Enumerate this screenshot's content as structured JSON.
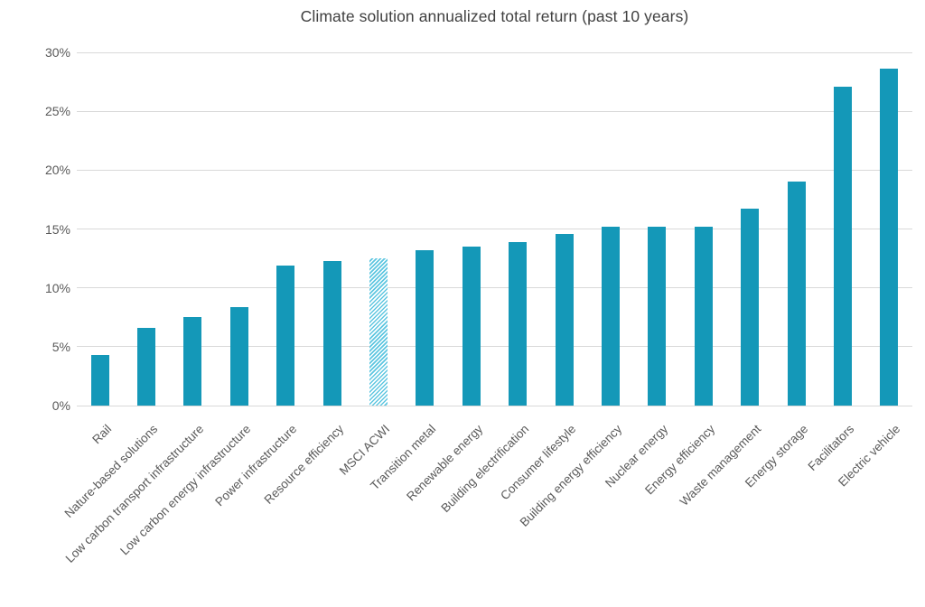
{
  "chart_data": {
    "type": "bar",
    "title": "Climate solution annualized total return (past 10 years)",
    "categories": [
      "Rail",
      "Nature-based solutions",
      "Low carbon transport infrastructure",
      "Low carbon energy infrastructure",
      "Power infrastructure",
      "Resource efficiency",
      "MSCI ACWI",
      "Transition metal",
      "Renewable energy",
      "Building electrification",
      "Consumer lifestyle",
      "Building energy efficiency",
      "Nuclear energy",
      "Energy efficiency",
      "Waste management",
      "Energy storage",
      "Facilitators",
      "Electric vehicle"
    ],
    "values": [
      4.3,
      6.6,
      7.5,
      8.4,
      11.9,
      12.3,
      12.5,
      13.2,
      13.5,
      13.9,
      14.6,
      15.2,
      15.2,
      15.2,
      16.7,
      19.0,
      27.1,
      28.6
    ],
    "value_unit": "%",
    "benchmark_category": "MSCI ACWI",
    "benchmark_index": 6,
    "benchmark_style": "hatched",
    "xlabel": "",
    "ylabel": "",
    "ylim": [
      0,
      30
    ],
    "ytick_labels": [
      "0%",
      "5%",
      "10%",
      "15%",
      "20%",
      "25%",
      "30%"
    ],
    "grid": "horizontal",
    "legend_position": "none",
    "colors": {
      "bar": "#1498b8",
      "benchmark_hatch": "#5ec6e0",
      "gridline": "#d9d9d9",
      "axis_text": "#595959",
      "title_text": "#404040",
      "background": "#ffffff"
    }
  }
}
